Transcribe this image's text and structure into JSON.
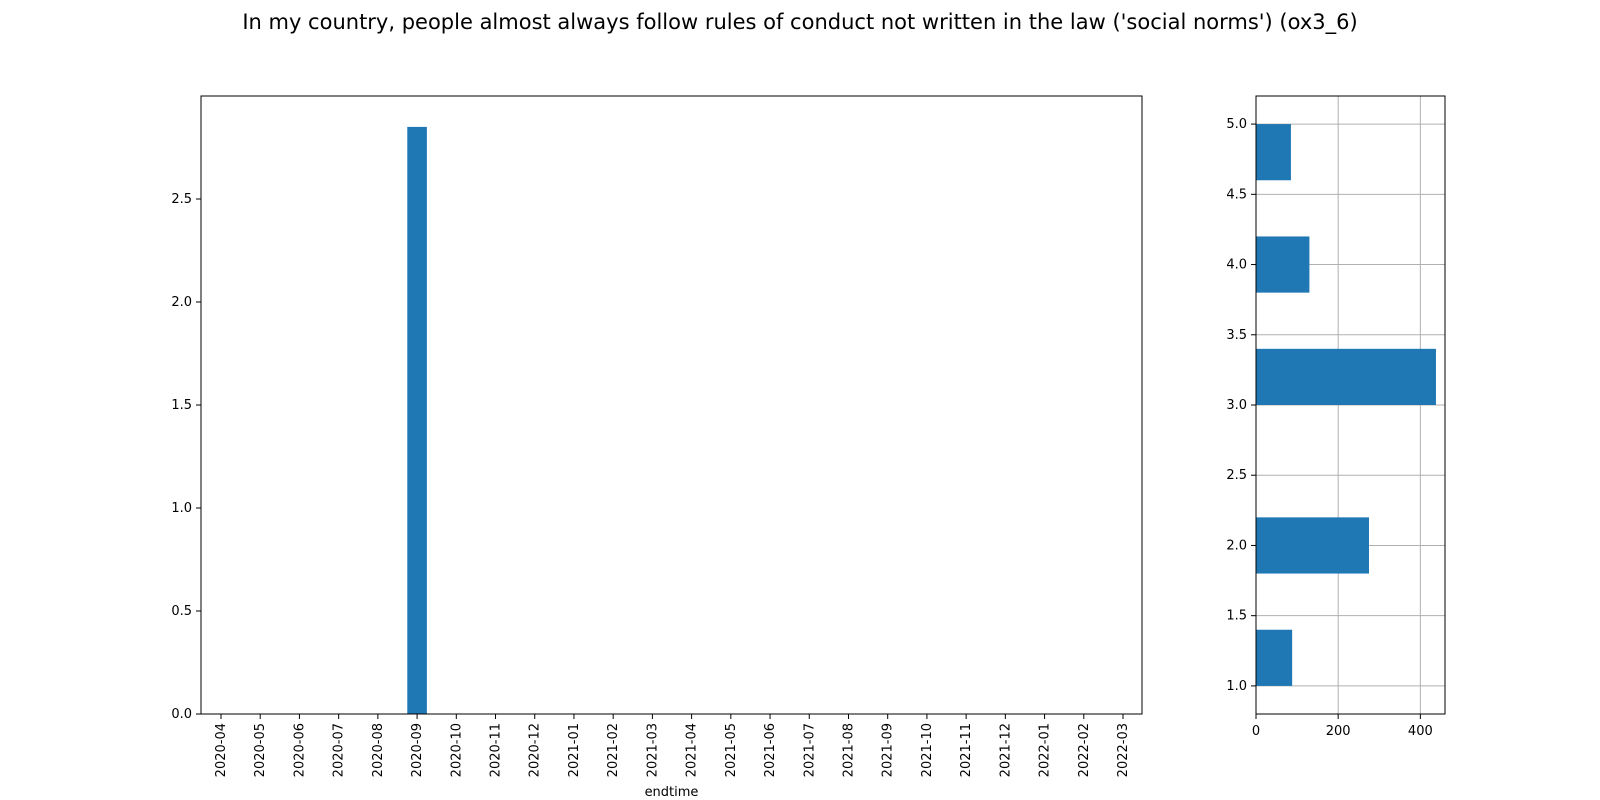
{
  "title": "In my country, people almost always follow rules of conduct not written in the law ('social norms') (ox3_6)",
  "colors": {
    "bar": "#1f77b4",
    "grid": "#b0b0b0",
    "axis": "#000000"
  },
  "chart_data": [
    {
      "type": "bar",
      "xlabel": "endtime",
      "ylabel": "",
      "categories": [
        "2020-04",
        "2020-05",
        "2020-06",
        "2020-07",
        "2020-08",
        "2020-09",
        "2020-10",
        "2020-11",
        "2020-12",
        "2021-01",
        "2021-02",
        "2021-03",
        "2021-04",
        "2021-05",
        "2021-06",
        "2021-07",
        "2021-08",
        "2021-09",
        "2021-10",
        "2021-11",
        "2021-12",
        "2022-01",
        "2022-02",
        "2022-03"
      ],
      "values": [
        0,
        0,
        0,
        0,
        0,
        2.85,
        0,
        0,
        0,
        0,
        0,
        0,
        0,
        0,
        0,
        0,
        0,
        0,
        0,
        0,
        0,
        0,
        0,
        0
      ],
      "ylim": [
        0,
        3.0
      ],
      "yticks": [
        0.0,
        0.5,
        1.0,
        1.5,
        2.0,
        2.5
      ],
      "ytick_labels": [
        "0.0",
        "0.5",
        "1.0",
        "1.5",
        "2.0",
        "2.5"
      ],
      "grid": false
    },
    {
      "type": "bar",
      "orientation": "horizontal",
      "bins": [
        {
          "start": 1.0,
          "end": 1.4,
          "count": 88
        },
        {
          "start": 1.8,
          "end": 2.2,
          "count": 275
        },
        {
          "start": 3.0,
          "end": 3.4,
          "count": 438
        },
        {
          "start": 3.8,
          "end": 4.2,
          "count": 130
        },
        {
          "start": 4.6,
          "end": 5.0,
          "count": 85
        }
      ],
      "xlim": [
        0,
        460
      ],
      "ylim": [
        0.8,
        5.2
      ],
      "xticks": [
        0,
        200,
        400
      ],
      "xtick_labels": [
        "0",
        "200",
        "400"
      ],
      "yticks": [
        1.0,
        1.5,
        2.0,
        2.5,
        3.0,
        3.5,
        4.0,
        4.5,
        5.0
      ],
      "ytick_labels": [
        "1.0",
        "1.5",
        "2.0",
        "2.5",
        "3.0",
        "3.5",
        "4.0",
        "4.5",
        "5.0"
      ],
      "grid": true
    }
  ]
}
